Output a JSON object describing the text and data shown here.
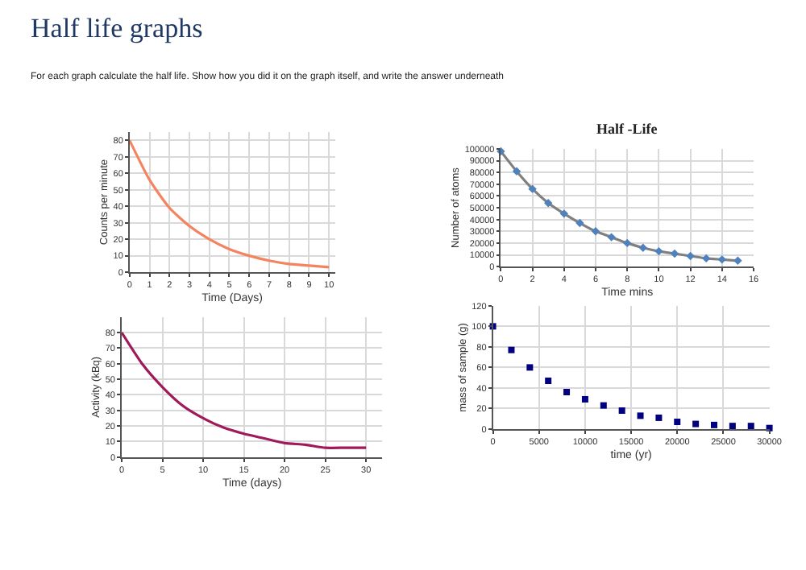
{
  "chart_data": [
    {
      "type": "other",
      "title": "Half life graphs",
      "subtitle": "For each graph calculate the half life. Show how you did it on the graph itself, and write the answer underneath"
    },
    {
      "type": "line",
      "xlabel": "Time (Days)",
      "ylabel": "Counts per minute",
      "x": [
        0,
        1,
        2,
        3,
        4,
        5,
        6,
        7,
        8,
        9,
        10
      ],
      "values": [
        80,
        56,
        39,
        28,
        20,
        14,
        10,
        7,
        5,
        4,
        3
      ],
      "color": "#f4845f",
      "xlim": [
        0,
        10.3
      ],
      "ylim": [
        0,
        85
      ],
      "xticks": [
        0,
        1,
        2,
        3,
        4,
        5,
        6,
        7,
        8,
        9,
        10
      ],
      "yticks": [
        0,
        10,
        20,
        30,
        40,
        50,
        60,
        70,
        80
      ],
      "grid": true
    },
    {
      "type": "line",
      "title": "Half -Life",
      "xlabel": "Time mins",
      "ylabel": "Number of atoms",
      "x": [
        0,
        1,
        2,
        3,
        4,
        5,
        6,
        7,
        8,
        9,
        10,
        11,
        12,
        13,
        14,
        15
      ],
      "series": [
        {
          "type": "line",
          "color": "#808080",
          "marker": "none",
          "values": [
            98000,
            81000,
            66000,
            54000,
            45000,
            37000,
            30000,
            25000,
            20000,
            16000,
            13000,
            11000,
            9000,
            7000,
            6000,
            5000
          ]
        },
        {
          "type": "scatter",
          "color": "#4f81bd",
          "marker": "diamond",
          "values": [
            98000,
            81000,
            66000,
            54000,
            45000,
            37000,
            30000,
            25000,
            20000,
            16000,
            13000,
            11000,
            9000,
            7000,
            6000,
            5000
          ]
        }
      ],
      "xlim": [
        0,
        16
      ],
      "ylim": [
        0,
        100000
      ],
      "xticks": [
        0,
        2,
        4,
        6,
        8,
        10,
        12,
        14,
        16
      ],
      "yticks": [
        0,
        10000,
        20000,
        30000,
        40000,
        50000,
        60000,
        70000,
        80000,
        90000,
        100000
      ],
      "grid": true
    },
    {
      "type": "line",
      "xlabel": "Time (days)",
      "ylabel": "Activity (kBq)",
      "x": [
        0,
        2.5,
        5,
        7.5,
        10,
        12.5,
        15,
        17.5,
        20,
        22.5,
        25,
        27.5,
        30
      ],
      "values": [
        80,
        60,
        45,
        33,
        25,
        19,
        15,
        12,
        9,
        8,
        6,
        6,
        6
      ],
      "color": "#a0195a",
      "xlim": [
        0,
        32
      ],
      "ylim": [
        0,
        90
      ],
      "xticks": [
        0,
        5,
        10,
        15,
        20,
        25,
        30
      ],
      "yticks": [
        0,
        10,
        20,
        30,
        40,
        50,
        60,
        70,
        80
      ],
      "grid": true
    },
    {
      "type": "scatter",
      "xlabel": "time (yr)",
      "ylabel": "mass of sample (g)",
      "x": [
        0,
        2000,
        4000,
        6000,
        8000,
        10000,
        12000,
        14000,
        16000,
        18000,
        20000,
        22000,
        24000,
        26000,
        28000,
        30000
      ],
      "values": [
        100,
        77,
        60,
        47,
        36,
        29,
        23,
        18,
        13,
        11,
        7,
        5,
        4,
        3,
        3,
        1
      ],
      "color": "#000080",
      "marker": "square",
      "xlim": [
        0,
        30000
      ],
      "ylim": [
        0,
        120
      ],
      "xticks": [
        0,
        5000,
        10000,
        15000,
        20000,
        25000,
        30000
      ],
      "yticks": [
        0,
        20,
        40,
        60,
        80,
        100,
        120
      ],
      "grid": true
    }
  ]
}
